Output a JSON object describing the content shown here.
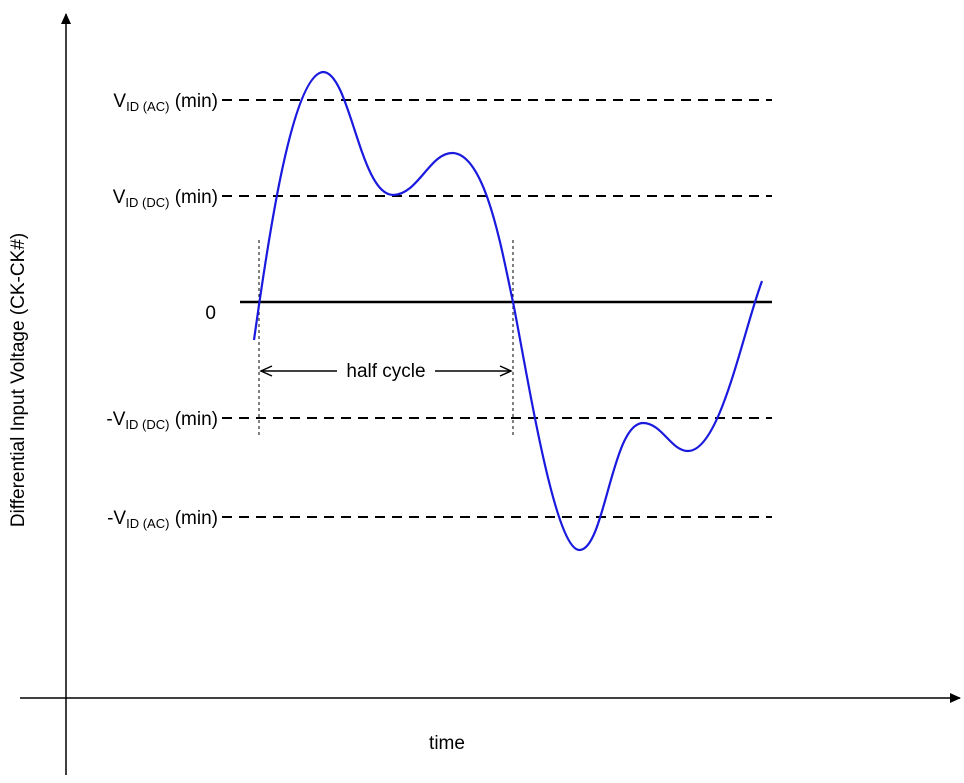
{
  "axes": {
    "y_label": "Differential Input Voltage (CK-CK#)",
    "x_label": "time"
  },
  "levels": {
    "vid_ac_pos": {
      "prefix": "V",
      "sub": "ID (AC)",
      "suffix": " (min)"
    },
    "vid_dc_pos": {
      "prefix": "V",
      "sub": "ID (DC)",
      "suffix": " (min)"
    },
    "zero": "0",
    "vid_dc_neg": {
      "prefix": "-V",
      "sub": "ID (DC)",
      "suffix": " (min)"
    },
    "vid_ac_neg": {
      "prefix": "-V",
      "sub": "ID (AC)",
      "suffix": " (min)"
    }
  },
  "annotation": {
    "half_cycle": "half cycle"
  },
  "colors": {
    "waveform": "#1a1adf",
    "lines": "#000000"
  }
}
